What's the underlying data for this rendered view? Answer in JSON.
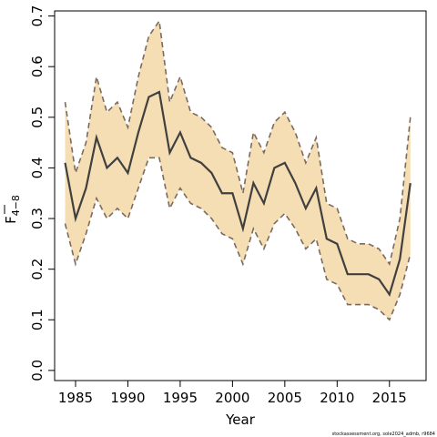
{
  "chart_data": {
    "type": "line",
    "title": "",
    "xlabel": "Year",
    "ylabel_main": "F",
    "ylabel_sub": "4−8",
    "xlim": [
      1983,
      2018.5
    ],
    "ylim": [
      -0.02,
      0.71
    ],
    "xticks": [
      1985,
      1990,
      1995,
      2000,
      2005,
      2010,
      2015
    ],
    "xtick_labels": [
      "1985",
      "1990",
      "1995",
      "2000",
      "2005",
      "2010",
      "2015"
    ],
    "yticks": [
      0.0,
      0.1,
      0.2,
      0.3,
      0.4,
      0.5,
      0.6,
      0.7
    ],
    "ytick_labels": [
      "0.0",
      "0.1",
      "0.2",
      "0.3",
      "0.4",
      "0.5",
      "0.6",
      "0.7"
    ],
    "grid": false,
    "x": [
      1984,
      1985,
      1986,
      1987,
      1988,
      1989,
      1990,
      1991,
      1992,
      1993,
      1994,
      1995,
      1996,
      1997,
      1998,
      1999,
      2000,
      2001,
      2002,
      2003,
      2004,
      2005,
      2006,
      2007,
      2008,
      2009,
      2010,
      2011,
      2012,
      2013,
      2014,
      2015,
      2016,
      2017
    ],
    "series": [
      {
        "role": "estimate",
        "values": [
          0.41,
          0.3,
          0.36,
          0.46,
          0.4,
          0.42,
          0.39,
          0.47,
          0.54,
          0.55,
          0.43,
          0.47,
          0.42,
          0.41,
          0.39,
          0.35,
          0.35,
          0.28,
          0.37,
          0.33,
          0.4,
          0.41,
          0.37,
          0.32,
          0.36,
          0.26,
          0.25,
          0.19,
          0.19,
          0.19,
          0.18,
          0.15,
          0.22,
          0.37
        ],
        "color": "#404040"
      },
      {
        "role": "upper",
        "values": [
          0.53,
          0.39,
          0.45,
          0.58,
          0.51,
          0.53,
          0.48,
          0.58,
          0.66,
          0.69,
          0.53,
          0.58,
          0.51,
          0.5,
          0.48,
          0.44,
          0.43,
          0.35,
          0.47,
          0.43,
          0.49,
          0.51,
          0.47,
          0.41,
          0.46,
          0.33,
          0.32,
          0.26,
          0.25,
          0.25,
          0.24,
          0.21,
          0.3,
          0.5
        ],
        "color": "#7a6a60"
      },
      {
        "role": "lower",
        "values": [
          0.29,
          0.21,
          0.27,
          0.34,
          0.3,
          0.32,
          0.3,
          0.36,
          0.42,
          0.42,
          0.32,
          0.36,
          0.33,
          0.32,
          0.3,
          0.27,
          0.26,
          0.21,
          0.28,
          0.24,
          0.29,
          0.31,
          0.28,
          0.24,
          0.26,
          0.18,
          0.17,
          0.13,
          0.13,
          0.13,
          0.12,
          0.1,
          0.15,
          0.23
        ],
        "color": "#7a6a60"
      }
    ],
    "band_color": "#f5deb3"
  },
  "footer": {
    "watermark": "stockassessment.org, sole2024_admb, r9684"
  }
}
